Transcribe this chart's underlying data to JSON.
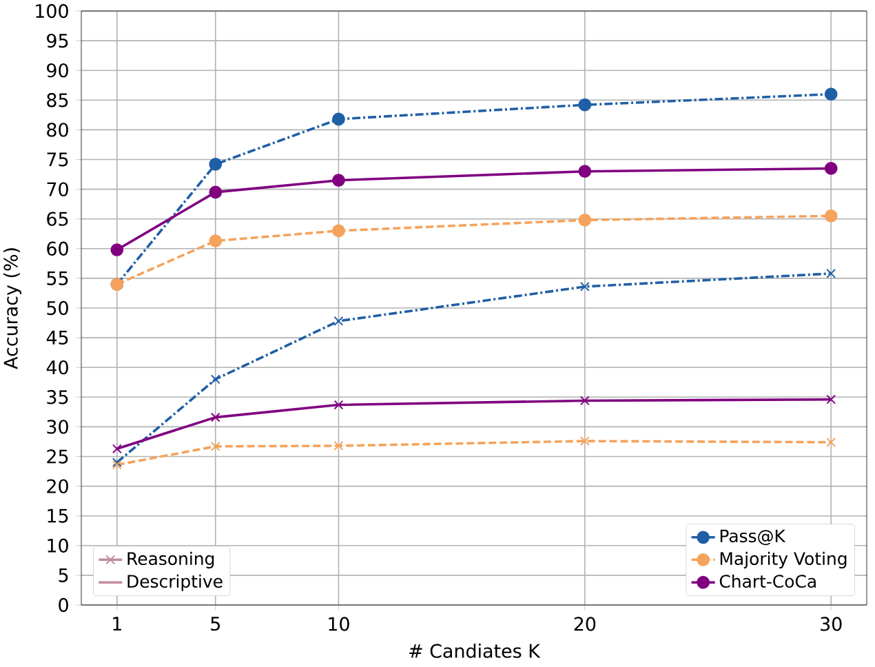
{
  "chart_data": {
    "type": "line",
    "xlabel": "# Candiates K",
    "ylabel": "Accuracy (%)",
    "x": [
      1,
      5,
      10,
      20,
      30
    ],
    "xlim": [
      -0.45,
      31.45
    ],
    "xticks": [
      1,
      5,
      10,
      20,
      30
    ],
    "ylim": [
      0,
      100
    ],
    "yticks": [
      0,
      5,
      10,
      15,
      20,
      25,
      30,
      35,
      40,
      45,
      50,
      55,
      60,
      65,
      70,
      75,
      80,
      85,
      90,
      95,
      100
    ],
    "grid": true,
    "legend": "bottom right",
    "annotations": [
      "Reasoning",
      "Descriptive"
    ],
    "series": [
      {
        "name": "Pass@K",
        "color": "#1f5fa6",
        "line_style": "dashdot",
        "marker": "circle",
        "values": [
          54,
          74.2,
          81.8,
          84.2,
          86
        ]
      },
      {
        "name": "Majority Voting",
        "color": "#f5a35c",
        "line_style": "dashed",
        "marker": "circle",
        "values": [
          54,
          61.3,
          63,
          64.8,
          65.5
        ]
      },
      {
        "name": "Chart-CoCa",
        "color": "#800080",
        "line_style": "solid",
        "marker": "circle",
        "values": [
          59.8,
          69.5,
          71.5,
          73,
          73.5
        ]
      },
      {
        "color": "#1f5fa6",
        "line_style": "dashdot",
        "marker": "cross",
        "values": [
          24,
          38,
          47.8,
          53.6,
          55.8
        ]
      },
      {
        "color": "#f5a35c",
        "line_style": "dashed",
        "marker": "cross",
        "values": [
          23.6,
          26.7,
          26.8,
          27.6,
          27.4
        ]
      },
      {
        "color": "#800080",
        "line_style": "solid",
        "marker": "cross",
        "values": [
          26.3,
          31.6,
          33.7,
          34.4,
          34.6
        ]
      }
    ]
  }
}
